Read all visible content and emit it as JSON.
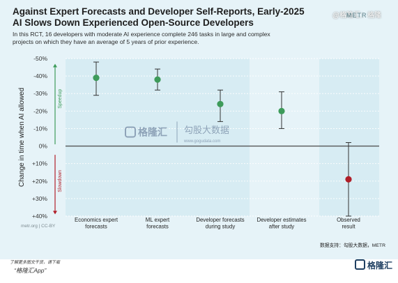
{
  "header": {
    "title_line1": "Against Expert Forecasts and Developer Self-Reports, Early-2025",
    "title_line2": "AI Slows Down Experienced Open-Source Developers",
    "subtitle_line1": "In this RCT, 16 developers with moderate AI experience complete 246 tasks in large and complex",
    "subtitle_line2": "projects on which they have an average of 5 years of prior experience.",
    "logo_text": "METR",
    "watermark_top": "@格隆汇：格隆"
  },
  "chart_data": {
    "type": "scatter",
    "ylabel": "Change in time when AI allowed",
    "yticks": [
      "-50%",
      "-40%",
      "-30%",
      "-20%",
      "-10%",
      "0%",
      "+10%",
      "+20%",
      "+30%",
      "+40%"
    ],
    "tick_values": [
      -50,
      -40,
      -30,
      -20,
      -10,
      0,
      10,
      20,
      30,
      40
    ],
    "ylim": [
      -50,
      40
    ],
    "categories": [
      "Economics expert forecasts",
      "ML expert forecasts",
      "Developer forecasts during study",
      "Developer estimates after study",
      "Observed result"
    ],
    "category_lines": [
      [
        "Economics expert",
        "forecasts"
      ],
      [
        "ML expert",
        "forecasts"
      ],
      [
        "Developer forecasts",
        "during study"
      ],
      [
        "Developer estimates",
        "after study"
      ],
      [
        "Observed",
        "result"
      ]
    ],
    "values": [
      -39,
      -38,
      -24,
      -20,
      19
    ],
    "ci_low": [
      -48,
      -44,
      -32,
      -31,
      -2
    ],
    "ci_high": [
      -29,
      -32,
      -14,
      -10,
      40
    ],
    "point_colors": [
      "#3d9b5a",
      "#3d9b5a",
      "#3d9b5a",
      "#3d9b5a",
      "#b01e28"
    ],
    "speedup_label": "Speedup",
    "slowdown_label": "Slowdown",
    "speedup_color": "#3d9b5a",
    "slowdown_color": "#b01e28",
    "watermark_logo": "格隆汇",
    "watermark_brand": "勾股大数据",
    "watermark_url": "www.gogudata.com"
  },
  "footer": {
    "credit": "metr.org | CC-BY",
    "source": "数据支持：勾股大数据，METR",
    "app_line1": "了解更多图文干货，请下载",
    "app_line2": "“格隆汇App”",
    "brand": "格隆汇"
  }
}
